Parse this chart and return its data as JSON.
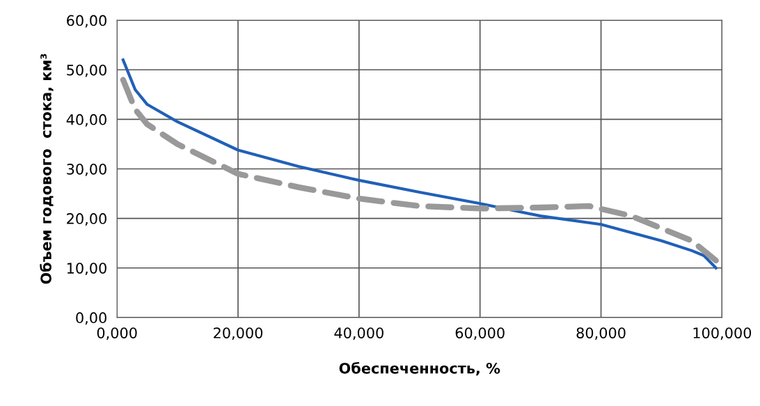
{
  "chart_data": {
    "type": "line",
    "xlabel": "Обеспеченность, %",
    "ylabel": "Объем годового  стока, км³",
    "xlim": [
      0,
      100
    ],
    "xticks": [
      {
        "value": 0,
        "label": "0,000"
      },
      {
        "value": 20,
        "label": "20,000"
      },
      {
        "value": 40,
        "label": "40,000"
      },
      {
        "value": 60,
        "label": "60,000"
      },
      {
        "value": 80,
        "label": "80,000"
      },
      {
        "value": 100,
        "label": "100,000"
      }
    ],
    "ylim": [
      0,
      60
    ],
    "yticks": [
      {
        "value": 0,
        "label": "0,00"
      },
      {
        "value": 10,
        "label": "10,00"
      },
      {
        "value": 20,
        "label": "20,00"
      },
      {
        "value": 30,
        "label": "30,00"
      },
      {
        "value": 40,
        "label": "40,00"
      },
      {
        "value": 50,
        "label": "50,00"
      },
      {
        "value": 60,
        "label": "60,00"
      }
    ],
    "grid": true,
    "marker": "none",
    "series": [
      {
        "color": "#2060b8",
        "line_style": "solid",
        "x": [
          1,
          3,
          5,
          10,
          20,
          30,
          40,
          50,
          60,
          70,
          80,
          90,
          95,
          97,
          99
        ],
        "values": [
          52,
          46,
          43,
          39.5,
          33.8,
          30.5,
          27.7,
          25.3,
          23,
          20.5,
          18.8,
          15.5,
          13.5,
          12.5,
          10
        ]
      },
      {
        "color": "#999999",
        "line_style": "dashed",
        "x": [
          1,
          3,
          5,
          10,
          20,
          30,
          40,
          50,
          60,
          70,
          78,
          85,
          90,
          95,
          99
        ],
        "values": [
          48,
          42,
          39,
          35,
          29,
          26.3,
          24,
          22.5,
          22,
          22.2,
          22.5,
          20.5,
          18,
          15.5,
          11.5
        ]
      }
    ]
  }
}
